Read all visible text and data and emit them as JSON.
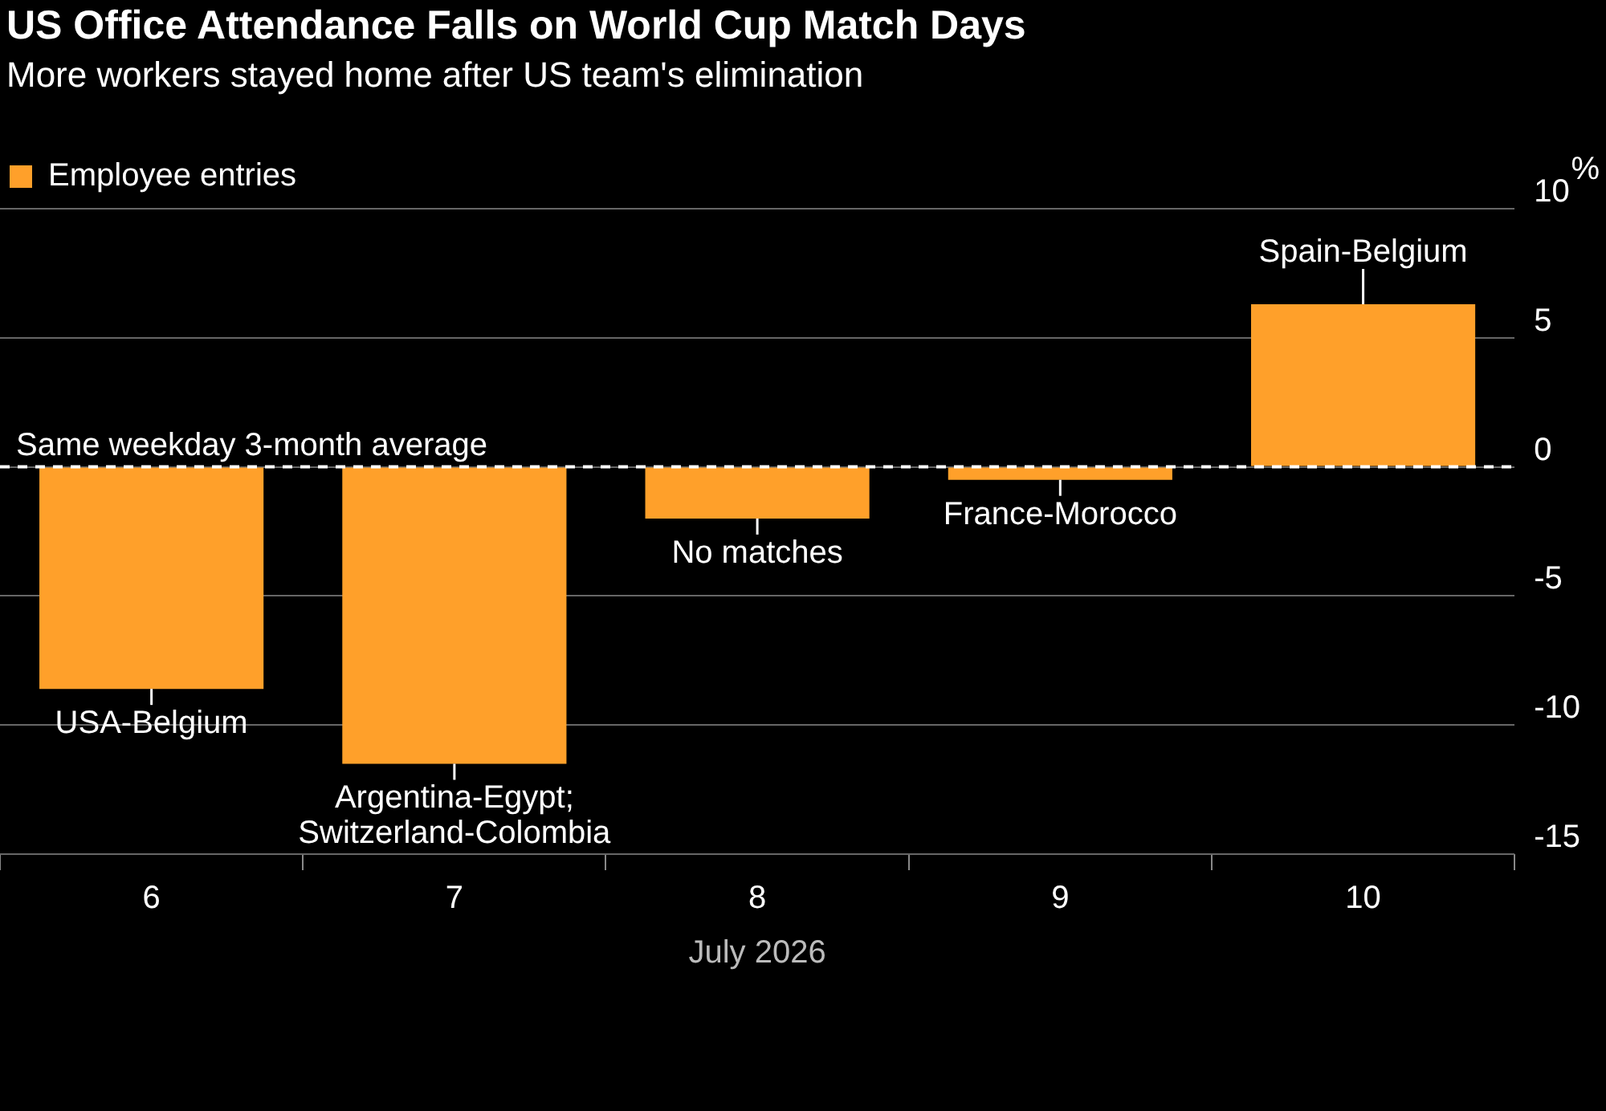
{
  "chart_data": {
    "type": "bar",
    "title": "US Office Attendance Falls on World Cup Match Days",
    "subtitle": "More workers stayed home after US team's elimination",
    "categories": [
      "6",
      "7",
      "8",
      "9",
      "10"
    ],
    "xlabel": "July 2026",
    "ylabel": "%",
    "series": [
      {
        "name": "Employee entries",
        "color": "#ffa02a",
        "values": [
          -8.6,
          -11.5,
          -2.0,
          -0.5,
          6.3
        ]
      }
    ],
    "ylim": [
      -15,
      10
    ],
    "yticks": [
      -15,
      -10,
      -5,
      0,
      5,
      10
    ],
    "grid": "y",
    "legend": "top left",
    "ref_lines": [
      {
        "axis": "y",
        "value": 0,
        "label": "Same weekday 3-month average",
        "color": "#ffffff",
        "line_style": "dashed"
      }
    ],
    "annotations": [
      {
        "text": "USA-Belgium",
        "x": "6",
        "y": -8.6
      },
      {
        "text": "Argentina-Egypt;\nSwitzerland-Colombia",
        "x": "7",
        "y": -11.5
      },
      {
        "text": "No matches",
        "x": "8",
        "y": -2.0
      },
      {
        "text": "France-Morocco",
        "x": "9",
        "y": -0.5
      },
      {
        "text": "Spain-Belgium",
        "x": "10",
        "y": 6.3
      }
    ]
  }
}
